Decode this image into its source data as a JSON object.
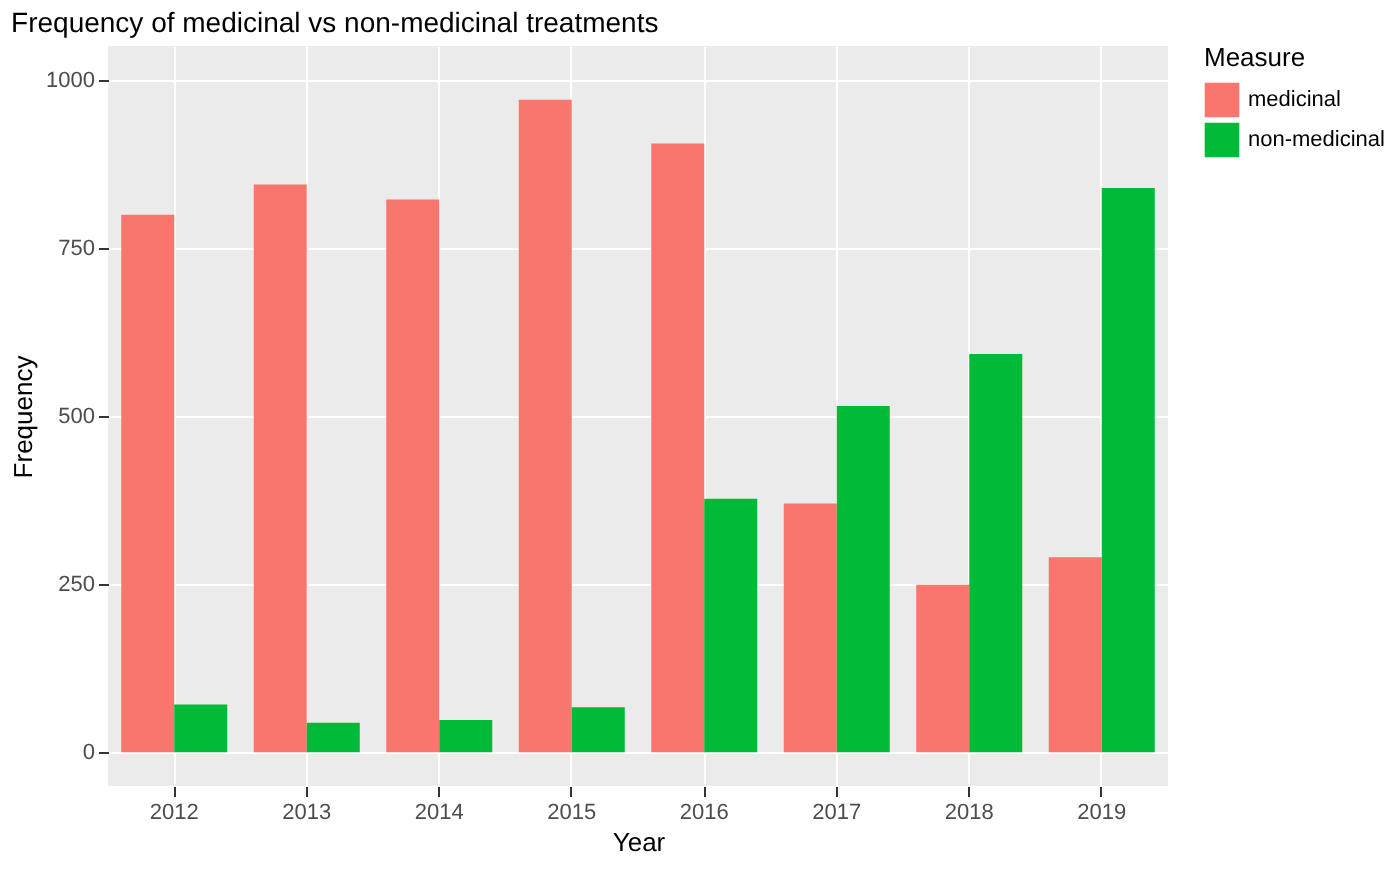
{
  "chart_data": {
    "type": "bar",
    "title": "Frequency of medicinal vs non-medicinal treatments",
    "xlabel": "Year",
    "ylabel": "Frequency",
    "legend_title": "Measure",
    "categories": [
      "2012",
      "2013",
      "2014",
      "2015",
      "2016",
      "2017",
      "2018",
      "2019"
    ],
    "series": [
      {
        "name": "medicinal",
        "color": "#f8766d",
        "values": [
          799,
          844,
          822,
          970,
          905,
          370,
          249,
          290
        ]
      },
      {
        "name": "non-medicinal",
        "color": "#00ba38",
        "values": [
          71,
          44,
          48,
          67,
          377,
          515,
          592,
          839
        ]
      }
    ],
    "ylim": [
      -50,
      1050
    ],
    "yticks": [
      0,
      250,
      500,
      750,
      1000
    ],
    "grid": true,
    "legend": "right"
  }
}
